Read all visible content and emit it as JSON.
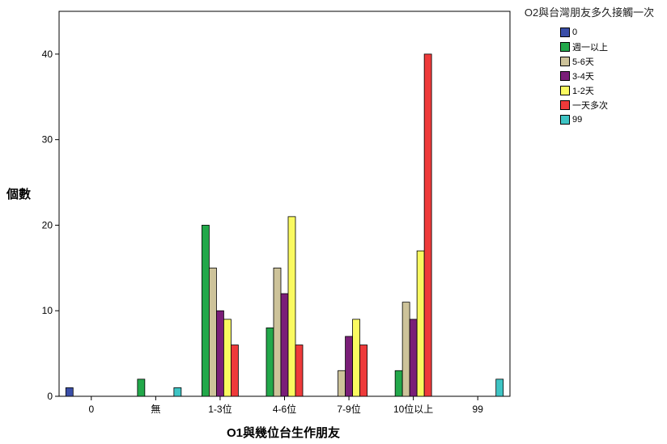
{
  "chart_data": {
    "type": "bar",
    "categories": [
      "0",
      "無",
      "1-3位",
      "4-6位",
      "7-9位",
      "10位以上",
      "99"
    ],
    "series": [
      {
        "name": "0",
        "color": "#3a4ea8",
        "values": [
          1,
          0,
          0,
          0,
          0,
          0,
          0
        ]
      },
      {
        "name": "週一以上",
        "color": "#22a84a",
        "values": [
          0,
          2,
          20,
          8,
          0,
          3,
          0
        ]
      },
      {
        "name": "5-6天",
        "color": "#cdc39a",
        "values": [
          0,
          0,
          15,
          15,
          3,
          11,
          0
        ]
      },
      {
        "name": "3-4天",
        "color": "#7a1e78",
        "values": [
          0,
          0,
          10,
          12,
          7,
          9,
          0
        ]
      },
      {
        "name": "1-2天",
        "color": "#fafa60",
        "values": [
          0,
          0,
          9,
          21,
          9,
          17,
          0
        ]
      },
      {
        "name": "一天多次",
        "color": "#ee3a3a",
        "values": [
          0,
          0,
          6,
          6,
          6,
          40,
          0
        ]
      },
      {
        "name": "99",
        "color": "#3ec4c4",
        "values": [
          0,
          1,
          0,
          0,
          0,
          0,
          2
        ]
      }
    ],
    "xlabel": "O1與幾位台生作朋友",
    "ylabel": "個數",
    "legend_title": "O2與台灣朋友多久接觸一次",
    "ylim": [
      0,
      45
    ],
    "yticks": [
      0,
      10,
      20,
      30,
      40
    ],
    "grid": false,
    "legend_position": "right"
  }
}
